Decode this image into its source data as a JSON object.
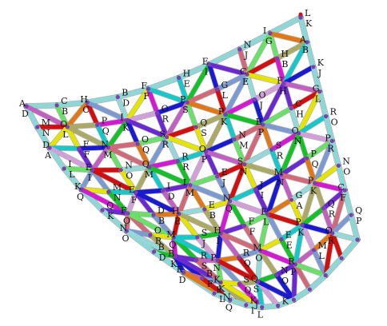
{
  "palette": {
    "border": "#8fd6d6",
    "struts": [
      "#1a1ad0",
      "#16c028",
      "#d11ad1",
      "#e4e400",
      "#d01010",
      "#e07818",
      "#d06a7a",
      "#6a2ad0",
      "#d2a0d8",
      "#18c8c8",
      "#aaaa66",
      "#96d8d8",
      "#7a9ad0",
      "#6ae06a",
      "#c060c0"
    ],
    "node": "#7b3fb0",
    "label": "#111111"
  },
  "labels": [
    "A",
    "D",
    "C",
    "B",
    "C",
    "H",
    "D",
    "B",
    "F",
    "F",
    "H",
    "E",
    "I",
    "E",
    "J",
    "N",
    "I",
    "G",
    "L",
    "K",
    "M",
    "N",
    "L",
    "O",
    "Q",
    "P",
    "I",
    "K",
    "O",
    "R",
    "S",
    "P",
    "L",
    "G",
    "C",
    "E",
    "H",
    "B",
    "B",
    "A",
    "A",
    "D",
    "F",
    "F",
    "N",
    "M",
    "O",
    "Q",
    "R",
    "S",
    "S",
    "Q",
    "P",
    "K",
    "O",
    "J",
    "H",
    "F",
    "J",
    "K",
    "L",
    "I",
    "E",
    "I",
    "N",
    "O",
    "M",
    "Q",
    "R",
    "R",
    "O",
    "P",
    "N",
    "M",
    "P",
    "E",
    "H",
    "C",
    "G",
    "L",
    "K",
    "Q",
    "M",
    "N",
    "F",
    "E",
    "D",
    "I",
    "I",
    "M",
    "E",
    "J",
    "N",
    "S",
    "R",
    "S",
    "O",
    "N",
    "R",
    "O",
    "Q",
    "K",
    "O",
    "F",
    "B",
    "D",
    "H",
    "E",
    "E",
    "B",
    "Q",
    "N",
    "I",
    "J",
    "M",
    "N",
    "P",
    "Q",
    "R",
    "P",
    "O",
    "N",
    "R",
    "O",
    "M",
    "Q",
    "S",
    "J",
    "I",
    "H",
    "F",
    "F",
    "E",
    "L",
    "G",
    "A",
    "K",
    "P",
    "O",
    "N",
    "D",
    "B",
    "B",
    "K",
    "R",
    "S",
    "N",
    "P",
    "Q",
    "R",
    "M",
    "O",
    "E",
    "E",
    "K",
    "P",
    "R",
    "Q",
    "C",
    "F",
    "E",
    "D",
    "B",
    "F",
    "E",
    "K",
    "Q",
    "S",
    "Q",
    "S",
    "N",
    "O",
    "P",
    "R",
    "L",
    "M",
    "O",
    "R",
    "Q",
    "P",
    "K",
    "L",
    "Q",
    "N",
    "I",
    "K",
    "J",
    "L",
    "K"
  ]
}
